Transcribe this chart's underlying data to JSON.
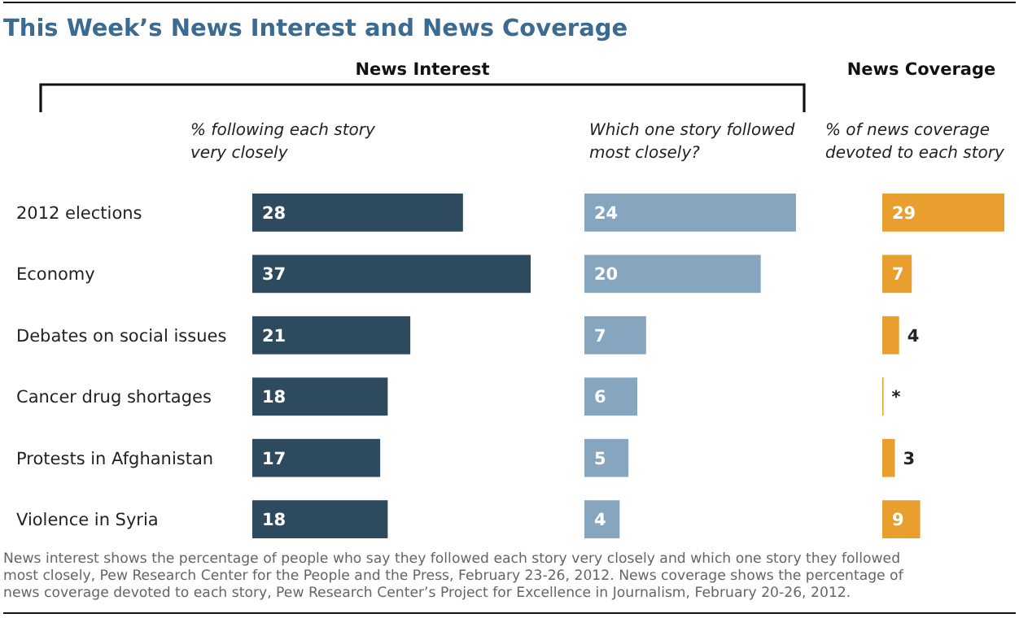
{
  "chart_data": [
    {
      "type": "bar",
      "orientation": "horizontal",
      "title": "This Week’s News Interest and News Coverage",
      "subtitle": "% following each story very closely",
      "categories": [
        "2012 elections",
        "Economy",
        "Debates on social issues",
        "Cancer drug shortages",
        "Protests in Afghanistan",
        "Violence in Syria"
      ],
      "values": [
        28,
        37,
        21,
        18,
        17,
        18
      ],
      "color": "#2e4a5f",
      "data_labels": true,
      "tick_labels": "y",
      "annotations": [
        "News Interest",
        "News interest shows the percentage of people who say they followed each story very closely and which one story they followed most closely, Pew Research Center for the People and the Press, February 23-26, 2012.  News coverage shows the percentage of news coverage devoted to each story, Pew Research Center’s Project for Excellence in Journalism, February 20-26, 2012."
      ]
    },
    {
      "type": "bar",
      "orientation": "horizontal",
      "subtitle": "Which one story followed most closely?",
      "categories": [
        null,
        null,
        null,
        null,
        null,
        null
      ],
      "values": [
        24,
        20,
        7,
        6,
        5,
        4
      ],
      "color": "#86a6c0",
      "data_labels": true,
      "tick_labels": false
    },
    {
      "type": "bar",
      "orientation": "horizontal",
      "title": "News Coverage",
      "subtitle": "% of news coverage devoted to each story",
      "categories": [
        null,
        null,
        null,
        null,
        null,
        null
      ],
      "values": [
        29,
        7,
        4,
        0.3,
        3,
        9
      ],
      "value_labels": [
        "29",
        "7",
        "4",
        "*",
        "3",
        "9"
      ],
      "color": "#e99f2e",
      "tick_labels": false
    }
  ]
}
